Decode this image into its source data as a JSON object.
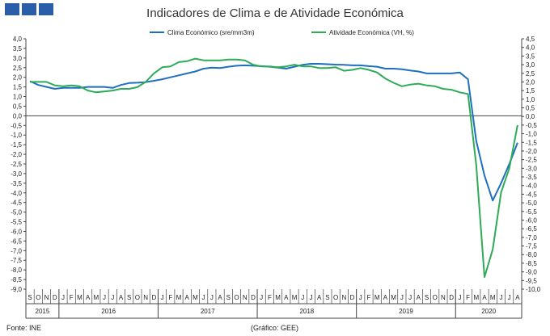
{
  "title": "Indicadores de Clima e de Atividade Económica",
  "source": "Fonte: INE",
  "credit": "(Gráfico: GEE)",
  "chart_data": {
    "type": "line",
    "title": "Indicadores de Clima e de Atividade Económica",
    "legend_position": "top",
    "grid": false,
    "x": [
      "2015-09",
      "2015-10",
      "2015-11",
      "2015-12",
      "2016-01",
      "2016-02",
      "2016-03",
      "2016-04",
      "2016-05",
      "2016-06",
      "2016-07",
      "2016-08",
      "2016-09",
      "2016-10",
      "2016-11",
      "2016-12",
      "2017-01",
      "2017-02",
      "2017-03",
      "2017-04",
      "2017-05",
      "2017-06",
      "2017-07",
      "2017-08",
      "2017-09",
      "2017-10",
      "2017-11",
      "2017-12",
      "2018-01",
      "2018-02",
      "2018-03",
      "2018-04",
      "2018-05",
      "2018-06",
      "2018-07",
      "2018-08",
      "2018-09",
      "2018-10",
      "2018-11",
      "2018-12",
      "2019-01",
      "2019-02",
      "2019-03",
      "2019-04",
      "2019-05",
      "2019-06",
      "2019-07",
      "2019-08",
      "2019-09",
      "2019-10",
      "2019-11",
      "2019-12",
      "2020-01",
      "2020-02",
      "2020-03",
      "2020-04",
      "2020-05",
      "2020-06",
      "2020-07",
      "2020-08"
    ],
    "month_labels": [
      "S",
      "O",
      "N",
      "D",
      "J",
      "F",
      "M",
      "A",
      "M",
      "J",
      "J",
      "A",
      "S",
      "O",
      "N",
      "D",
      "J",
      "F",
      "M",
      "A",
      "M",
      "J",
      "J",
      "A",
      "S",
      "O",
      "N",
      "D",
      "J",
      "F",
      "M",
      "A",
      "M",
      "J",
      "J",
      "A",
      "S",
      "O",
      "N",
      "D",
      "J",
      "F",
      "M",
      "A",
      "M",
      "J",
      "J",
      "A",
      "S",
      "O",
      "N",
      "D",
      "J",
      "F",
      "M",
      "A",
      "M",
      "J",
      "J",
      "A"
    ],
    "year_labels": [
      {
        "label": "2015",
        "start": 0,
        "end": 3
      },
      {
        "label": "2016",
        "start": 4,
        "end": 15
      },
      {
        "label": "2017",
        "start": 16,
        "end": 27
      },
      {
        "label": "2018",
        "start": 28,
        "end": 39
      },
      {
        "label": "2019",
        "start": 40,
        "end": 51
      },
      {
        "label": "2020",
        "start": 52,
        "end": 59
      }
    ],
    "y_left": {
      "min": -9.0,
      "max": 4.0,
      "step": 0.5,
      "ticks": [
        "4,0",
        "3,5",
        "3,0",
        "2,5",
        "2,0",
        "1,5",
        "1,0",
        "0,5",
        "0,0",
        "-0,5",
        "-1,0",
        "-1,5",
        "-2,0",
        "-2,5",
        "-3,0",
        "-3,5",
        "-4,0",
        "-4,5",
        "-5,0",
        "-5,5",
        "-6,0",
        "-6,5",
        "-7,0",
        "-7,5",
        "-8,0",
        "-8,5",
        "-9,0"
      ]
    },
    "y_right": {
      "min": -10.0,
      "max": 4.5,
      "step": 0.5,
      "ticks": [
        "4,5",
        "4,0",
        "3,5",
        "3,0",
        "2,5",
        "2,0",
        "1,5",
        "1,0",
        "0,5",
        "0,0",
        "-0,5",
        "-1,0",
        "-1,5",
        "-2,0",
        "-2,5",
        "-3,0",
        "-3,5",
        "-4,0",
        "-4,5",
        "-5,0",
        "-5,5",
        "-6,0",
        "-6,5",
        "-7,0",
        "-7,5",
        "-8,0",
        "-8,5",
        "-9,0",
        "-9,5",
        "-10,0"
      ]
    },
    "series": [
      {
        "name": "Clima Económico (sre/mm3m)",
        "axis": "left",
        "color": "#1f6fbf",
        "values": [
          1.8,
          1.6,
          1.5,
          1.4,
          1.45,
          1.45,
          1.45,
          1.5,
          1.5,
          1.5,
          1.45,
          1.6,
          1.7,
          1.72,
          1.75,
          1.82,
          1.9,
          2.0,
          2.1,
          2.2,
          2.3,
          2.45,
          2.5,
          2.48,
          2.55,
          2.6,
          2.62,
          2.6,
          2.58,
          2.55,
          2.5,
          2.45,
          2.55,
          2.65,
          2.7,
          2.7,
          2.68,
          2.66,
          2.65,
          2.62,
          2.62,
          2.58,
          2.55,
          2.45,
          2.45,
          2.42,
          2.35,
          2.3,
          2.2,
          2.2,
          2.2,
          2.2,
          2.25,
          1.9,
          -1.3,
          -3.1,
          -4.4,
          -3.5,
          -2.5,
          -1.4
        ]
      },
      {
        "name": "Atividade Económica (VH, %)",
        "axis": "right",
        "color": "#2eab57",
        "values": [
          2.0,
          2.0,
          2.0,
          1.8,
          1.75,
          1.8,
          1.75,
          1.5,
          1.4,
          1.45,
          1.5,
          1.6,
          1.6,
          1.7,
          2.0,
          2.5,
          2.85,
          2.9,
          3.15,
          3.2,
          3.35,
          3.25,
          3.25,
          3.25,
          3.3,
          3.3,
          3.25,
          3.0,
          2.9,
          2.9,
          2.85,
          2.9,
          3.0,
          2.9,
          2.9,
          2.8,
          2.8,
          2.85,
          2.65,
          2.7,
          2.8,
          2.7,
          2.55,
          2.2,
          1.95,
          1.75,
          1.85,
          1.9,
          1.8,
          1.75,
          1.6,
          1.55,
          1.4,
          1.3,
          -2.8,
          -9.3,
          -7.7,
          -4.4,
          -3.0,
          -0.5
        ]
      }
    ]
  }
}
